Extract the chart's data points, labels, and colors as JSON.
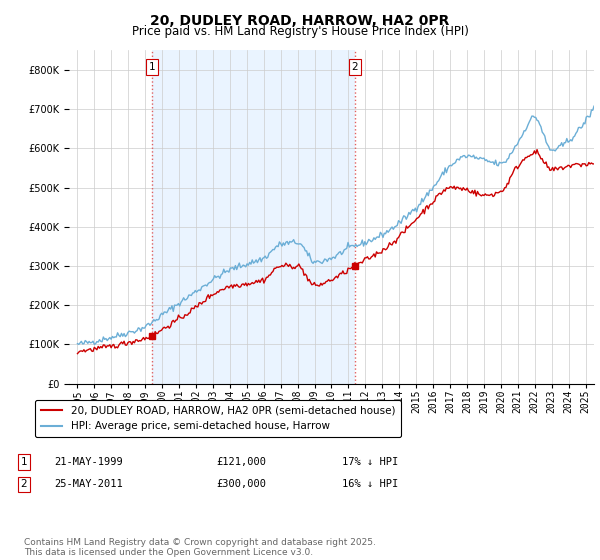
{
  "title": "20, DUDLEY ROAD, HARROW, HA2 0PR",
  "subtitle": "Price paid vs. HM Land Registry's House Price Index (HPI)",
  "legend_line1": "20, DUDLEY ROAD, HARROW, HA2 0PR (semi-detached house)",
  "legend_line2": "HPI: Average price, semi-detached house, Harrow",
  "footer": "Contains HM Land Registry data © Crown copyright and database right 2025.\nThis data is licensed under the Open Government Licence v3.0.",
  "annotation1_label": "1",
  "annotation1_date": "21-MAY-1999",
  "annotation1_price": "£121,000",
  "annotation1_hpi": "17% ↓ HPI",
  "annotation2_label": "2",
  "annotation2_date": "25-MAY-2011",
  "annotation2_price": "£300,000",
  "annotation2_hpi": "16% ↓ HPI",
  "vline1_x": 1999.38,
  "vline2_x": 2011.38,
  "sale1_x": 1999.38,
  "sale1_y": 121000,
  "sale2_x": 2011.38,
  "sale2_y": 300000,
  "hpi_color": "#6baed6",
  "price_color": "#cc0000",
  "vline_color": "#e06060",
  "shade_color": "#ddeeff",
  "background_color": "#ffffff",
  "grid_color": "#cccccc",
  "ylim": [
    0,
    850000
  ],
  "xlim": [
    1994.5,
    2025.5
  ],
  "title_fontsize": 10,
  "subtitle_fontsize": 8.5,
  "tick_fontsize": 7,
  "legend_fontsize": 7.5,
  "anno_fontsize": 7.5,
  "footer_fontsize": 6.5
}
